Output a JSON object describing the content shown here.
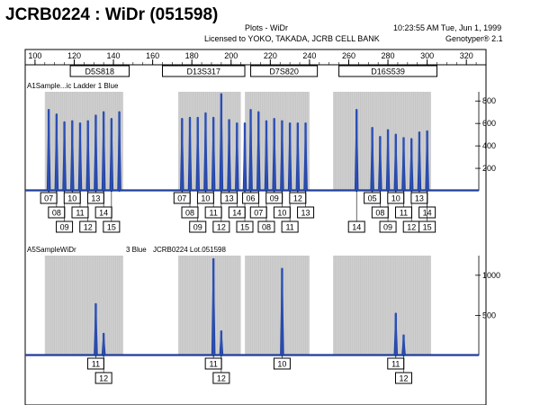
{
  "page_title": "JCRB0224 : WiDr (051598)",
  "header": {
    "plot_title": "Plots - WiDr",
    "license": "Licensed to YOKO, TAKADA, JCRB CELL BANK",
    "timestamp": "10:23:55  AM  Tue, Jun 1, 1999",
    "software": "Genotyper®  2.1"
  },
  "chart_data": {
    "type": "line",
    "x_axis": {
      "min": 95,
      "max": 330,
      "ticks": [
        100,
        120,
        140,
        160,
        180,
        200,
        220,
        240,
        260,
        280,
        300,
        320
      ]
    },
    "markers": [
      {
        "name": "D5S818",
        "start": 118,
        "end": 148
      },
      {
        "name": "D13S317",
        "start": 165,
        "end": 207
      },
      {
        "name": "D7S820",
        "start": 210,
        "end": 244
      },
      {
        "name": "D16S539",
        "start": 255,
        "end": 305
      }
    ],
    "gray_bins": [
      [
        105,
        145
      ],
      [
        173,
        205
      ],
      [
        207,
        240
      ],
      [
        252,
        302
      ]
    ],
    "panels": [
      {
        "label": "A1Sample...ic Ladder  1 Blue",
        "sublabel": "",
        "y_ticks": [
          200,
          400,
          600,
          800
        ],
        "ylim": [
          0,
          850
        ],
        "peaks": [
          {
            "x": 107,
            "h": 720
          },
          {
            "x": 111,
            "h": 680
          },
          {
            "x": 115,
            "h": 610
          },
          {
            "x": 119,
            "h": 620
          },
          {
            "x": 123,
            "h": 600
          },
          {
            "x": 127,
            "h": 620
          },
          {
            "x": 131,
            "h": 670
          },
          {
            "x": 135,
            "h": 700
          },
          {
            "x": 139,
            "h": 640
          },
          {
            "x": 143,
            "h": 700
          },
          {
            "x": 175,
            "h": 640
          },
          {
            "x": 179,
            "h": 650
          },
          {
            "x": 183,
            "h": 650
          },
          {
            "x": 187,
            "h": 690
          },
          {
            "x": 191,
            "h": 650
          },
          {
            "x": 195,
            "h": 860
          },
          {
            "x": 199,
            "h": 630
          },
          {
            "x": 203,
            "h": 600
          },
          {
            "x": 207,
            "h": 600
          },
          {
            "x": 210,
            "h": 720
          },
          {
            "x": 214,
            "h": 700
          },
          {
            "x": 218,
            "h": 620
          },
          {
            "x": 222,
            "h": 640
          },
          {
            "x": 226,
            "h": 620
          },
          {
            "x": 230,
            "h": 600
          },
          {
            "x": 234,
            "h": 600
          },
          {
            "x": 238,
            "h": 600
          },
          {
            "x": 264,
            "h": 720
          },
          {
            "x": 272,
            "h": 560
          },
          {
            "x": 276,
            "h": 480
          },
          {
            "x": 280,
            "h": 540
          },
          {
            "x": 284,
            "h": 500
          },
          {
            "x": 288,
            "h": 470
          },
          {
            "x": 292,
            "h": 460
          },
          {
            "x": 296,
            "h": 520
          },
          {
            "x": 300,
            "h": 530
          }
        ],
        "allele_rows": [
          [
            "07",
            "10",
            "13"
          ],
          [
            "08",
            "11",
            "14"
          ],
          [
            "09",
            "12",
            "15"
          ],
          [
            "07",
            "10",
            "13"
          ],
          [
            "08",
            "11",
            "14"
          ],
          [
            "09",
            "12",
            "15"
          ],
          [
            "06",
            "09",
            "12"
          ],
          [
            "07",
            "10",
            "13"
          ],
          [
            "08",
            "11",
            "14"
          ],
          [
            "05",
            "08",
            "11",
            "14"
          ],
          [
            "09",
            "12",
            "15"
          ],
          [
            "10",
            "13"
          ]
        ]
      },
      {
        "label": "A5SampleWiDr",
        "sublabel": "3 Blue",
        "sample_id": "JCRB0224 Lot.051598",
        "y_ticks": [
          500,
          1000
        ],
        "ylim": [
          0,
          1200
        ],
        "peaks": [
          {
            "x": 131,
            "h": 640
          },
          {
            "x": 135,
            "h": 270
          },
          {
            "x": 191,
            "h": 1200
          },
          {
            "x": 195,
            "h": 300
          },
          {
            "x": 226,
            "h": 1080
          },
          {
            "x": 284,
            "h": 520
          },
          {
            "x": 288,
            "h": 250
          }
        ],
        "alleles": [
          {
            "x": 131,
            "label": "11",
            "row": 0
          },
          {
            "x": 135,
            "label": "12",
            "row": 1
          },
          {
            "x": 191,
            "label": "11",
            "row": 0
          },
          {
            "x": 195,
            "label": "12",
            "row": 1
          },
          {
            "x": 226,
            "label": "10",
            "row": 0
          },
          {
            "x": 284,
            "label": "11",
            "row": 0
          },
          {
            "x": 288,
            "label": "12",
            "row": 1
          }
        ]
      }
    ]
  }
}
